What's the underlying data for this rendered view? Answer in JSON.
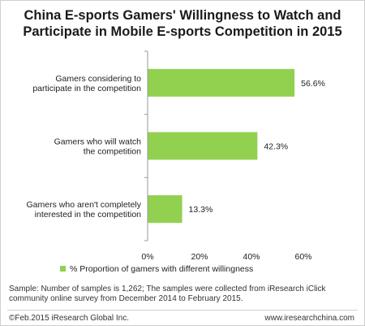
{
  "chart_data": {
    "type": "bar",
    "orientation": "horizontal",
    "title_lines": [
      "China E-sports Gamers' Willingness to Watch and",
      "Participate in Mobile E-sports Competition in 2015"
    ],
    "categories": [
      [
        "Gamers considering to",
        "participate in the competition"
      ],
      [
        "Gamers who will watch",
        "the competition"
      ],
      [
        "Gamers who aren't completely",
        "interested in the competition"
      ]
    ],
    "values": [
      56.6,
      42.3,
      13.3
    ],
    "value_labels": [
      "56.6%",
      "42.3%",
      "13.3%"
    ],
    "xlim": [
      0,
      60
    ],
    "xticks": [
      0,
      20,
      40,
      60
    ],
    "xtick_labels": [
      "0%",
      "20%",
      "40%",
      "60%"
    ],
    "grid": false,
    "legend": {
      "position": "bottom",
      "entries": [
        {
          "name": "% Proportion of gamers with different willingness",
          "color": "#92D050"
        }
      ]
    },
    "bar_color": "#92D050"
  },
  "footer": {
    "sample_note": "Sample: Number of samples is 1,262; The samples were collected from iResearch iClick community online survey from December 2014 to February 2015.",
    "copyright": "©Feb.2015 iResearch Global Inc.",
    "website": "www.iresearchchina.com"
  }
}
